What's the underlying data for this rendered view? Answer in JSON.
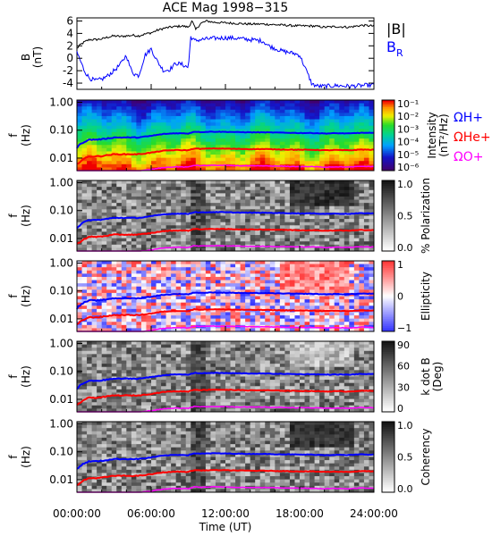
{
  "chart_data": [
    {
      "type": "line",
      "title": "ACE Mag 1998−315",
      "ylabel": "B",
      "yunit": "(nT)",
      "ylim": [
        -5,
        6.5
      ],
      "yticks": [
        "6",
        "4",
        "2",
        "0",
        "-2",
        "-4"
      ],
      "xlim": [
        0,
        24
      ],
      "series": [
        {
          "name": "|B|",
          "color": "#000000",
          "x": [
            0,
            0.3,
            0.6,
            1,
            1.5,
            2,
            2.5,
            3,
            3.5,
            4,
            4.5,
            5,
            5.5,
            6,
            6.5,
            7,
            7.5,
            8,
            8.5,
            9,
            9.3,
            9.6,
            10,
            10.5,
            11,
            12,
            13,
            14,
            15,
            16,
            17,
            18,
            19,
            20,
            21,
            22,
            23,
            24
          ],
          "y": [
            1.6,
            2.2,
            2.6,
            3.0,
            3.0,
            3.1,
            3.4,
            3.6,
            3.5,
            3.6,
            3.7,
            3.6,
            3.9,
            4.1,
            4.5,
            4.8,
            5.0,
            5.1,
            5.2,
            5.0,
            6.0,
            4.6,
            5.6,
            6.0,
            5.8,
            5.7,
            5.6,
            5.5,
            5.5,
            5.4,
            5.3,
            5.2,
            5.2,
            5.0,
            5.1,
            5.0,
            5.3,
            5.2
          ]
        },
        {
          "name": "B_R",
          "color": "#0000ff",
          "x": [
            0,
            0.3,
            0.6,
            1,
            1.5,
            2,
            2.5,
            3,
            3.5,
            4,
            4.3,
            4.6,
            5,
            5.5,
            6,
            6.5,
            7,
            7.5,
            8,
            8.5,
            9,
            9.2,
            9.5,
            10,
            11,
            12,
            13,
            14,
            15,
            15.5,
            16,
            16.5,
            17,
            17.5,
            18,
            18.5,
            19,
            19.5,
            20,
            21,
            22,
            23,
            24
          ],
          "y": [
            1.0,
            -0.5,
            -2.0,
            -3.2,
            -3.6,
            -3.4,
            -2.8,
            -2.0,
            -1.0,
            0.5,
            -1.5,
            -2.5,
            -2.8,
            0.5,
            1.5,
            -0.5,
            -2.0,
            -1.8,
            -0.8,
            -1.0,
            -1.5,
            3.5,
            2.8,
            3.0,
            3.2,
            3.3,
            3.2,
            3.0,
            2.8,
            2.0,
            1.6,
            1.2,
            1.0,
            0.8,
            0.5,
            -1.8,
            -4.2,
            -4.5,
            -4.5,
            -4.4,
            -4.5,
            -4.4,
            -4.3
          ]
        }
      ]
    },
    {
      "type": "heatmap",
      "ylabel": "f",
      "yunit": "(Hz)",
      "yticks": [
        "1.00",
        "0.10",
        "0.01"
      ],
      "colorbar_label": "Intensity",
      "colorbar_unit": "(nT²/Hz)",
      "colorbar_ticks": [
        "10⁻¹",
        "10⁻²",
        "10⁻³",
        "10⁻⁴",
        "10⁻⁵",
        "10⁻⁶"
      ],
      "legend": [
        "ΩH+",
        "ΩHe+",
        "ΩO+"
      ],
      "legend_colors": [
        "#0000ff",
        "#ff0000",
        "#ff00ff"
      ]
    },
    {
      "type": "heatmap",
      "ylabel": "f",
      "yunit": "(Hz)",
      "yticks": [
        "1.00",
        "0.10",
        "0.01"
      ],
      "colorbar_label": "% Polarization",
      "colorbar_ticks": [
        "1.0",
        "0.5",
        "0.0"
      ]
    },
    {
      "type": "heatmap",
      "ylabel": "f",
      "yunit": "(Hz)",
      "yticks": [
        "1.00",
        "0.10",
        "0.01"
      ],
      "colorbar_label": "Ellipticity",
      "colorbar_ticks": [
        "1",
        "0",
        "−1"
      ]
    },
    {
      "type": "heatmap",
      "ylabel": "f",
      "yunit": "(Hz)",
      "yticks": [
        "1.00",
        "0.10",
        "0.01"
      ],
      "colorbar_label": "k dot B",
      "colorbar_unit": "(Deg)",
      "colorbar_ticks": [
        "90",
        "60",
        "30",
        "0"
      ]
    },
    {
      "type": "heatmap",
      "ylabel": "f",
      "yunit": "(Hz)",
      "yticks": [
        "1.00",
        "0.10",
        "0.01"
      ],
      "colorbar_label": "Coherency",
      "colorbar_ticks": [
        "1.0",
        "0.5",
        "0.0"
      ],
      "xlabel": "Time (UT)",
      "xticks": [
        "00:00:00",
        "06:00:00",
        "12:00:00",
        "18:00:00",
        "24:00:00"
      ]
    }
  ],
  "gyrofrequency_lines": {
    "x": [
      0,
      0.5,
      1,
      1.5,
      2,
      3,
      4,
      5,
      6,
      7,
      8,
      9,
      9.5,
      10,
      11,
      12,
      13,
      14,
      15,
      16,
      17,
      18,
      19,
      20,
      21,
      22,
      23,
      24
    ],
    "B": [
      1.6,
      2.4,
      3.0,
      3.0,
      3.1,
      3.6,
      3.6,
      3.6,
      4.1,
      4.8,
      5.1,
      5.0,
      5.8,
      5.6,
      5.8,
      5.7,
      5.6,
      5.5,
      5.5,
      5.4,
      5.3,
      5.2,
      5.2,
      5.0,
      5.1,
      5.0,
      5.3,
      5.2
    ],
    "colors": {
      "H": "#0000ff",
      "He": "#ff0000",
      "O": "#ff00ff"
    }
  }
}
